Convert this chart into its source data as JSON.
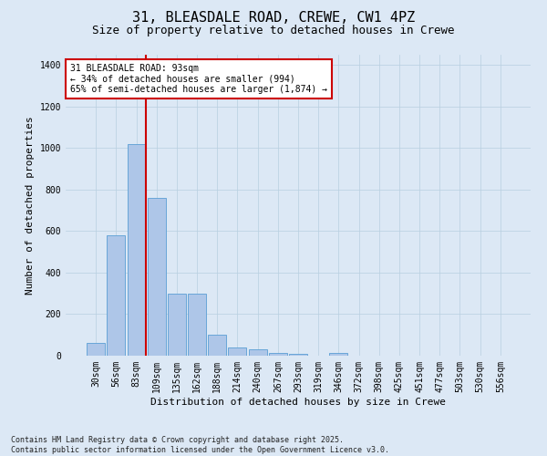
{
  "title_line1": "31, BLEASDALE ROAD, CREWE, CW1 4PZ",
  "title_line2": "Size of property relative to detached houses in Crewe",
  "xlabel": "Distribution of detached houses by size in Crewe",
  "ylabel": "Number of detached properties",
  "categories": [
    "30sqm",
    "56sqm",
    "83sqm",
    "109sqm",
    "135sqm",
    "162sqm",
    "188sqm",
    "214sqm",
    "240sqm",
    "267sqm",
    "293sqm",
    "319sqm",
    "346sqm",
    "372sqm",
    "398sqm",
    "425sqm",
    "451sqm",
    "477sqm",
    "503sqm",
    "530sqm",
    "556sqm"
  ],
  "values": [
    60,
    580,
    1020,
    760,
    300,
    300,
    100,
    40,
    30,
    15,
    10,
    0,
    15,
    0,
    0,
    0,
    0,
    0,
    0,
    0,
    0
  ],
  "bar_color": "#aec6e8",
  "bar_edge_color": "#5a9fd4",
  "vline_color": "#cc0000",
  "vline_pos": 2.45,
  "annotation_text": "31 BLEASDALE ROAD: 93sqm\n← 34% of detached houses are smaller (994)\n65% of semi-detached houses are larger (1,874) →",
  "annotation_box_color": "#ffffff",
  "annotation_box_edge": "#cc0000",
  "ylim": [
    0,
    1450
  ],
  "yticks": [
    0,
    200,
    400,
    600,
    800,
    1000,
    1200,
    1400
  ],
  "footer_text": "Contains HM Land Registry data © Crown copyright and database right 2025.\nContains public sector information licensed under the Open Government Licence v3.0.",
  "bg_color": "#dce8f5",
  "plot_bg_color": "#dce8f5",
  "title_fontsize": 11,
  "subtitle_fontsize": 9,
  "ylabel_fontsize": 8,
  "xlabel_fontsize": 8,
  "tick_fontsize": 7,
  "footer_fontsize": 6,
  "ann_fontsize": 7
}
